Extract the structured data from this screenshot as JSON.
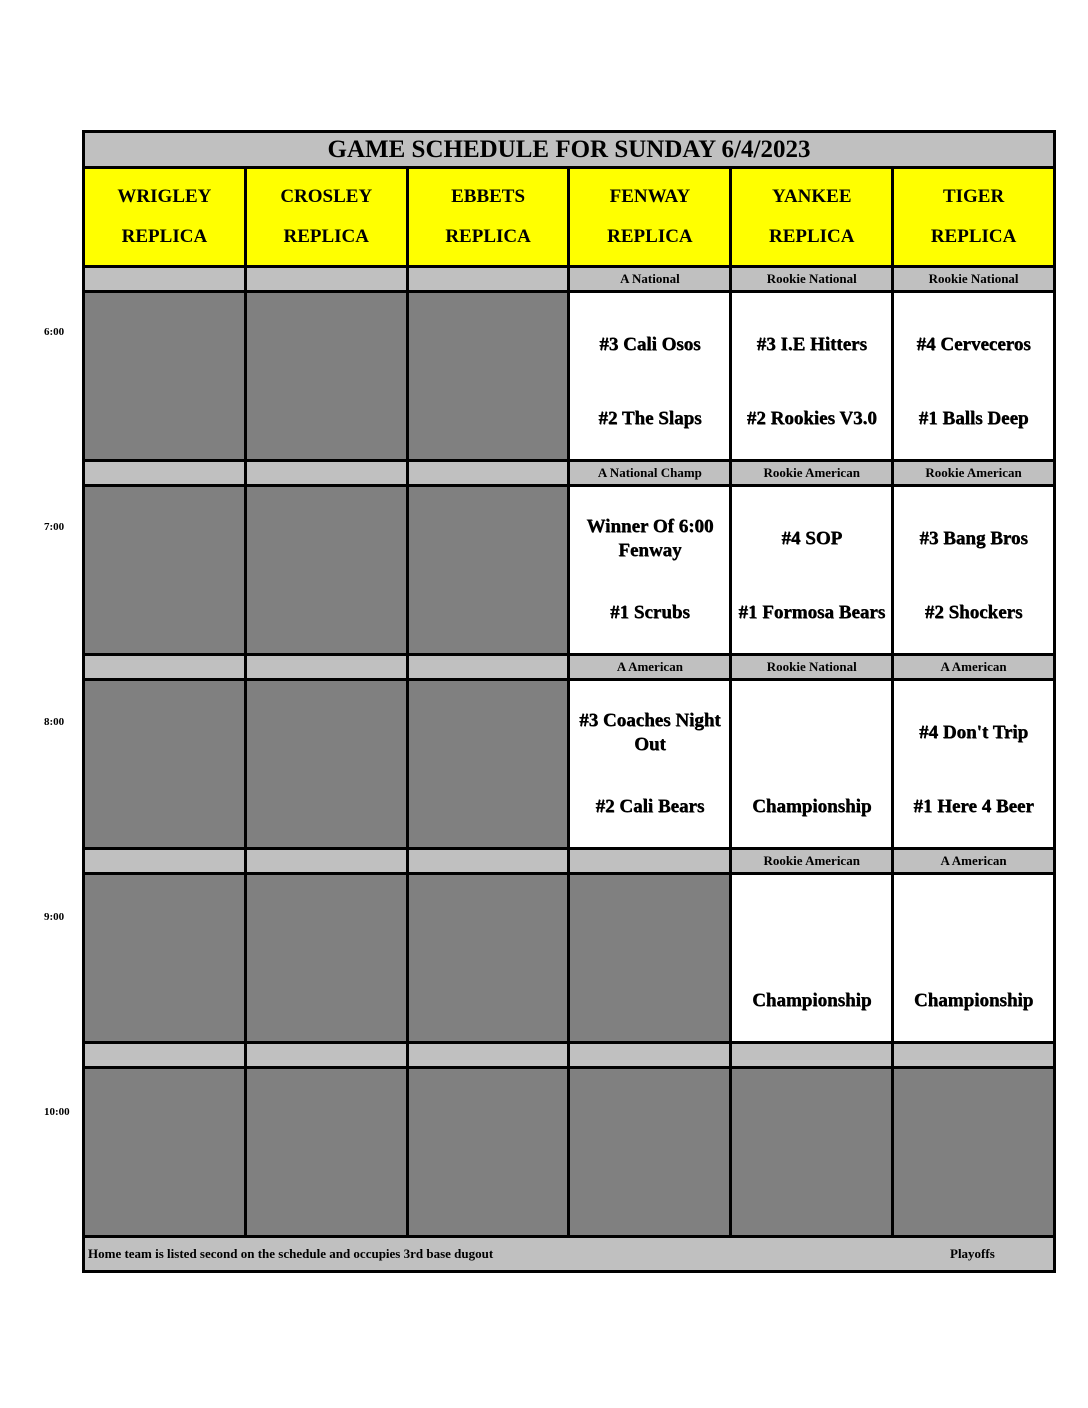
{
  "title": "GAME SCHEDULE FOR SUNDAY 6/4/2023",
  "fields": [
    {
      "name": "WRIGLEY",
      "sub": "REPLICA"
    },
    {
      "name": "CROSLEY",
      "sub": "REPLICA"
    },
    {
      "name": "EBBETS",
      "sub": "REPLICA"
    },
    {
      "name": "FENWAY",
      "sub": "REPLICA"
    },
    {
      "name": "YANKEE",
      "sub": "REPLICA"
    },
    {
      "name": "TIGER",
      "sub": "REPLICA"
    }
  ],
  "slots": [
    {
      "time": "6:00",
      "cells": [
        {
          "division": "",
          "active": false
        },
        {
          "division": "",
          "active": false
        },
        {
          "division": "",
          "active": false
        },
        {
          "division": "A National",
          "active": true,
          "top": "#3 Cali Osos",
          "bottom": "#2 The Slaps"
        },
        {
          "division": "Rookie National",
          "active": true,
          "top": "#3 I.E Hitters",
          "bottom": "#2 Rookies V3.0"
        },
        {
          "division": "Rookie National",
          "active": true,
          "top": "#4 Cerveceros",
          "bottom": "#1 Balls Deep"
        }
      ]
    },
    {
      "time": "7:00",
      "cells": [
        {
          "division": "",
          "active": false
        },
        {
          "division": "",
          "active": false
        },
        {
          "division": "",
          "active": false
        },
        {
          "division": "A National Champ",
          "active": true,
          "top": "Winner Of 6:00 Fenway",
          "bottom": "#1 Scrubs"
        },
        {
          "division": "Rookie American",
          "active": true,
          "top": "#4 SOP",
          "bottom": "#1 Formosa Bears"
        },
        {
          "division": "Rookie American",
          "active": true,
          "top": "#3 Bang Bros",
          "bottom": "#2 Shockers"
        }
      ]
    },
    {
      "time": "8:00",
      "cells": [
        {
          "division": "",
          "active": false
        },
        {
          "division": "",
          "active": false
        },
        {
          "division": "",
          "active": false
        },
        {
          "division": "A American",
          "active": true,
          "top": "#3 Coaches Night Out",
          "bottom": "#2 Cali Bears"
        },
        {
          "division": "Rookie National",
          "active": true,
          "top": "",
          "bottom": "Championship"
        },
        {
          "division": "A American",
          "active": true,
          "top": "#4 Don't Trip",
          "bottom": "#1 Here 4 Beer"
        }
      ]
    },
    {
      "time": "9:00",
      "cells": [
        {
          "division": "",
          "active": false
        },
        {
          "division": "",
          "active": false
        },
        {
          "division": "",
          "active": false
        },
        {
          "division": "",
          "active": false
        },
        {
          "division": "Rookie American",
          "active": true,
          "top": "",
          "bottom": "Championship"
        },
        {
          "division": "A American",
          "active": true,
          "top": "",
          "bottom": "Championship"
        }
      ]
    },
    {
      "time": "10:00",
      "cells": [
        {
          "division": "",
          "active": false
        },
        {
          "division": "",
          "active": false
        },
        {
          "division": "",
          "active": false
        },
        {
          "division": "",
          "active": false
        },
        {
          "division": "",
          "active": false
        },
        {
          "division": "",
          "active": false
        }
      ]
    }
  ],
  "footer": {
    "note": "Home team is listed second on the schedule and occupies 3rd base dugout",
    "playoffs": "Playoffs"
  },
  "colors": {
    "header": "#ffff00",
    "label": "#c0c0c0",
    "inactive": "#808080",
    "active": "#ffffff"
  }
}
